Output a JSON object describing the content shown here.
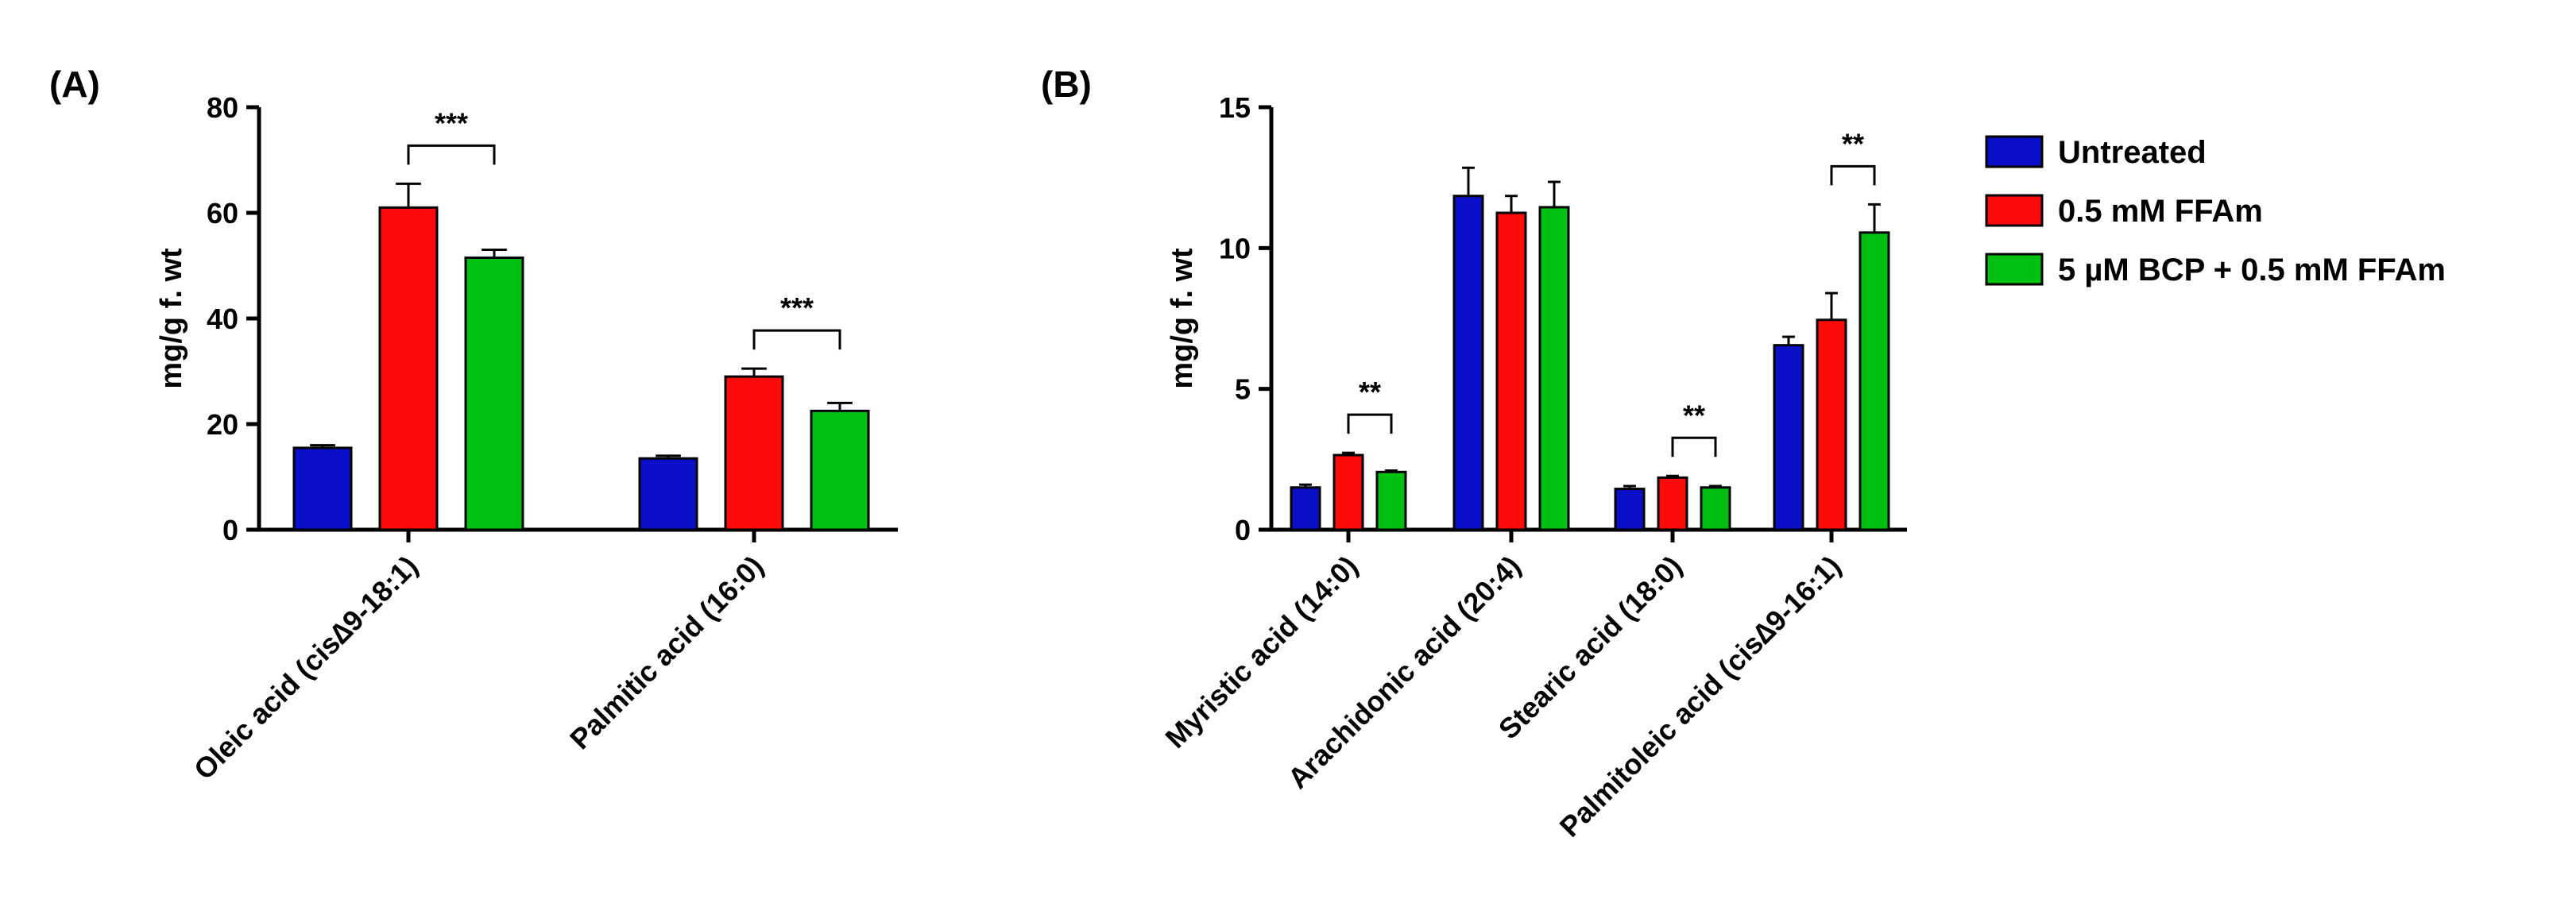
{
  "series_colors": {
    "Untreated": "#0a10c8",
    "0.5 mM FFAm": "#ff0a0a",
    "5 µM BCP + 0.5 mM FFAm": "#00c011"
  },
  "legend": [
    "Untreated",
    "0.5 mM FFAm",
    "5 µM BCP + 0.5 mM FFAm"
  ],
  "chart_data": [
    {
      "panel": "(A)",
      "type": "bar",
      "ylabel": "mg/g f. wt",
      "ylim": [
        0,
        80
      ],
      "yticks": [
        0,
        20,
        40,
        60,
        80
      ],
      "categories": [
        "Oleic acid (cis∆9-18:1)",
        "Palmitic acid (16:0)"
      ],
      "series": [
        {
          "name": "Untreated",
          "values": [
            15.5,
            13.5
          ],
          "errors": [
            0.5,
            0.5
          ]
        },
        {
          "name": "0.5 mM FFAm",
          "values": [
            61,
            29
          ],
          "errors": [
            4.5,
            1.5
          ]
        },
        {
          "name": "5 µM BCP + 0.5 mM FFAm",
          "values": [
            51.5,
            22.5
          ],
          "errors": [
            1.5,
            1.5
          ]
        }
      ],
      "significance": [
        {
          "category": 0,
          "between": [
            1,
            2
          ],
          "label": "***"
        },
        {
          "category": 1,
          "between": [
            1,
            2
          ],
          "label": "***"
        }
      ]
    },
    {
      "panel": "(B)",
      "type": "bar",
      "ylabel": "mg/g f. wt",
      "ylim": [
        0,
        15
      ],
      "yticks": [
        0,
        5,
        10,
        15
      ],
      "categories": [
        "Myristic acid (14:0)",
        "Arachidonic acid (20:4)",
        "Stearic acid (18:0)",
        "Palmitoleic acid (cis∆9-16:1)"
      ],
      "series": [
        {
          "name": "Untreated",
          "values": [
            1.5,
            11.85,
            1.45,
            6.55
          ],
          "errors": [
            0.1,
            1.0,
            0.1,
            0.3
          ]
        },
        {
          "name": "0.5 mM FFAm",
          "values": [
            2.65,
            11.25,
            1.85,
            7.45
          ],
          "errors": [
            0.08,
            0.6,
            0.06,
            0.95
          ]
        },
        {
          "name": "5 µM BCP + 0.5 mM FFAm",
          "values": [
            2.05,
            11.45,
            1.5,
            10.55
          ],
          "errors": [
            0.05,
            0.9,
            0.05,
            1.0
          ]
        }
      ],
      "significance": [
        {
          "category": 0,
          "between": [
            1,
            2
          ],
          "label": "**"
        },
        {
          "category": 2,
          "between": [
            1,
            2
          ],
          "label": "**"
        },
        {
          "category": 3,
          "between": [
            1,
            2
          ],
          "label": "**"
        }
      ]
    }
  ]
}
